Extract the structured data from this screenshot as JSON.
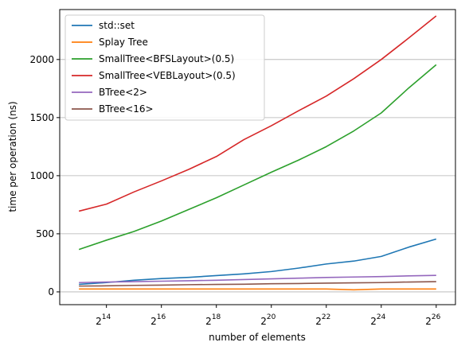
{
  "chart_data": {
    "type": "line",
    "title": "",
    "xlabel": "number of elements",
    "ylabel": "time per operation (ns)",
    "x_scale": "log2",
    "x": [
      8192,
      16384,
      32768,
      65536,
      131072,
      262144,
      524288,
      1048576,
      2097152,
      4194304,
      8388608,
      16777216,
      33554432,
      67108864
    ],
    "x_ticks": [
      {
        "base": "2",
        "exp": "14",
        "value": 16384
      },
      {
        "base": "2",
        "exp": "16",
        "value": 65536
      },
      {
        "base": "2",
        "exp": "18",
        "value": 262144
      },
      {
        "base": "2",
        "exp": "20",
        "value": 1048576
      },
      {
        "base": "2",
        "exp": "22",
        "value": 4194304
      },
      {
        "base": "2",
        "exp": "24",
        "value": 16777216
      },
      {
        "base": "2",
        "exp": "26",
        "value": 67108864
      }
    ],
    "ylim": [
      -110,
      2430
    ],
    "y_ticks": [
      "0",
      "500",
      "1000",
      "1500",
      "2000"
    ],
    "y_tick_values": [
      0,
      500,
      1000,
      1500,
      2000
    ],
    "grid": "horizontal",
    "legend_position": "top-left",
    "series": [
      {
        "name": "std::set",
        "color": "#1f77b4",
        "values": [
          65,
          80,
          100,
          115,
          125,
          140,
          155,
          175,
          205,
          240,
          265,
          305,
          385,
          455
        ]
      },
      {
        "name": "Splay Tree",
        "color": "#ff7f0e",
        "values": [
          25,
          25,
          25,
          25,
          25,
          25,
          25,
          25,
          25,
          25,
          18,
          25,
          25,
          25
        ]
      },
      {
        "name": "SmallTree<BFSLayout>(0.5)",
        "color": "#2ca02c",
        "values": [
          365,
          445,
          520,
          610,
          710,
          810,
          920,
          1030,
          1135,
          1250,
          1385,
          1540,
          1755,
          1955
        ]
      },
      {
        "name": "SmallTree<VEBLayout>(0.5)",
        "color": "#d62728",
        "values": [
          695,
          755,
          860,
          955,
          1055,
          1165,
          1310,
          1430,
          1560,
          1685,
          1835,
          2000,
          2185,
          2375
        ]
      },
      {
        "name": "BTree<2>",
        "color": "#9467bd",
        "values": [
          80,
          85,
          88,
          92,
          96,
          100,
          106,
          112,
          118,
          124,
          128,
          132,
          138,
          142
        ]
      },
      {
        "name": "BTree<16>",
        "color": "#8c564b",
        "values": [
          50,
          52,
          56,
          58,
          62,
          64,
          66,
          70,
          72,
          75,
          78,
          80,
          85,
          88
        ]
      }
    ]
  }
}
